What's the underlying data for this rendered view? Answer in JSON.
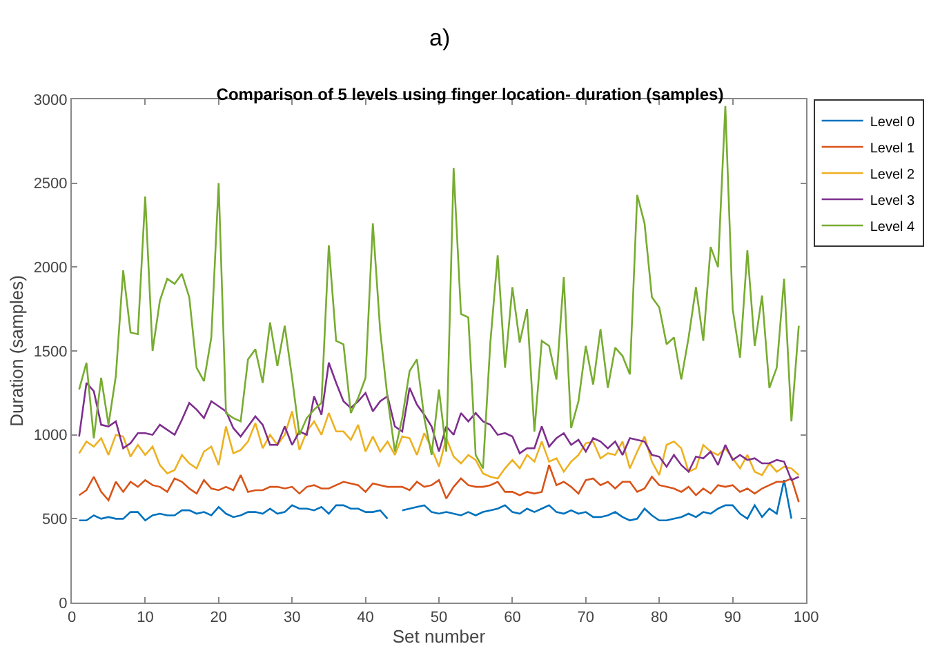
{
  "chart_data": {
    "type": "line",
    "title": "Comparison of 5 levels using finger location- duration (samples)",
    "annotations": [
      "a)"
    ],
    "xlabel": "Set number",
    "ylabel": "Duration (samples)",
    "x": [
      1,
      2,
      3,
      4,
      5,
      6,
      7,
      8,
      9,
      10,
      11,
      12,
      13,
      14,
      15,
      16,
      17,
      18,
      19,
      20,
      21,
      22,
      23,
      24,
      25,
      26,
      27,
      28,
      29,
      30,
      31,
      32,
      33,
      34,
      35,
      36,
      37,
      38,
      39,
      40,
      41,
      42,
      43,
      44,
      45,
      46,
      47,
      48,
      49,
      50,
      51,
      52,
      53,
      54,
      55,
      56,
      57,
      58,
      59,
      60,
      61,
      62,
      63,
      64,
      65,
      66,
      67,
      68,
      69,
      70,
      71,
      72,
      73,
      74,
      75,
      76,
      77,
      78,
      79,
      80,
      81,
      82,
      83,
      84,
      85,
      86,
      87,
      88,
      89,
      90,
      91,
      92,
      93,
      94,
      95,
      96,
      97,
      98,
      99
    ],
    "series": [
      {
        "name": "Level 0",
        "color": "#0072bd",
        "values": [
          490,
          490,
          520,
          500,
          510,
          500,
          500,
          540,
          540,
          490,
          520,
          530,
          520,
          520,
          550,
          550,
          530,
          540,
          520,
          570,
          530,
          510,
          520,
          540,
          540,
          530,
          560,
          530,
          540,
          580,
          560,
          560,
          550,
          570,
          530,
          580,
          580,
          560,
          560,
          540,
          540,
          550,
          500,
          null,
          550,
          560,
          570,
          580,
          540,
          530,
          540,
          530,
          520,
          540,
          520,
          540,
          550,
          560,
          580,
          540,
          530,
          560,
          540,
          560,
          580,
          540,
          530,
          550,
          530,
          540,
          510,
          510,
          520,
          540,
          510,
          490,
          500,
          560,
          520,
          490,
          490,
          500,
          510,
          530,
          510,
          540,
          530,
          560,
          580,
          580,
          530,
          500,
          580,
          510,
          560,
          530,
          730,
          500,
          null
        ]
      },
      {
        "name": "Level 1",
        "color": "#d95319",
        "values": [
          640,
          670,
          750,
          660,
          610,
          720,
          660,
          720,
          690,
          730,
          700,
          690,
          660,
          740,
          720,
          680,
          650,
          730,
          680,
          670,
          690,
          670,
          760,
          660,
          670,
          670,
          690,
          690,
          680,
          690,
          650,
          690,
          700,
          680,
          680,
          700,
          720,
          710,
          700,
          660,
          710,
          700,
          690,
          690,
          690,
          670,
          720,
          690,
          700,
          730,
          620,
          690,
          740,
          700,
          690,
          690,
          700,
          720,
          660,
          660,
          640,
          660,
          650,
          660,
          820,
          700,
          720,
          690,
          650,
          730,
          740,
          700,
          720,
          680,
          720,
          720,
          660,
          680,
          750,
          700,
          690,
          680,
          660,
          690,
          640,
          680,
          650,
          700,
          690,
          700,
          660,
          680,
          650,
          680,
          700,
          720,
          720,
          740,
          600
        ]
      },
      {
        "name": "Level 2",
        "color": "#edb120",
        "values": [
          890,
          960,
          930,
          980,
          880,
          1000,
          990,
          870,
          940,
          880,
          930,
          820,
          770,
          790,
          880,
          830,
          800,
          900,
          930,
          820,
          1050,
          890,
          910,
          960,
          1070,
          920,
          1000,
          940,
          1000,
          1140,
          910,
          1020,
          1080,
          1000,
          1130,
          1020,
          1020,
          970,
          1060,
          900,
          990,
          900,
          960,
          880,
          990,
          980,
          880,
          1010,
          920,
          810,
          980,
          870,
          830,
          880,
          850,
          770,
          750,
          740,
          800,
          850,
          800,
          880,
          840,
          960,
          840,
          860,
          780,
          840,
          880,
          950,
          960,
          860,
          890,
          880,
          960,
          800,
          900,
          990,
          840,
          760,
          940,
          960,
          920,
          780,
          800,
          940,
          900,
          880,
          920,
          860,
          800,
          880,
          780,
          760,
          830,
          780,
          810,
          800,
          760
        ]
      },
      {
        "name": "Level 3",
        "color": "#7e2f8e",
        "values": [
          990,
          1310,
          1260,
          1060,
          1050,
          1080,
          920,
          950,
          1010,
          1010,
          1000,
          1060,
          1030,
          1000,
          1090,
          1190,
          1150,
          1100,
          1200,
          1170,
          1140,
          1040,
          990,
          1050,
          1110,
          1060,
          940,
          940,
          1050,
          940,
          1020,
          1000,
          1230,
          1120,
          1430,
          1310,
          1200,
          1160,
          1200,
          1250,
          1140,
          1200,
          1230,
          1050,
          1020,
          1280,
          1180,
          1120,
          1050,
          900,
          1050,
          1000,
          1130,
          1080,
          1130,
          1080,
          1060,
          1000,
          1010,
          990,
          890,
          920,
          920,
          1050,
          930,
          980,
          1010,
          940,
          970,
          900,
          980,
          960,
          920,
          960,
          880,
          980,
          970,
          960,
          880,
          870,
          810,
          880,
          820,
          780,
          870,
          860,
          900,
          820,
          940,
          850,
          880,
          850,
          860,
          830,
          830,
          850,
          840,
          730,
          750
        ]
      },
      {
        "name": "Level 4",
        "color": "#77ac30",
        "values": [
          1270,
          1430,
          980,
          1340,
          1060,
          1350,
          1980,
          1610,
          1600,
          2420,
          1500,
          1800,
          1930,
          1900,
          1960,
          1820,
          1400,
          1320,
          1580,
          2500,
          1130,
          1100,
          1080,
          1450,
          1510,
          1310,
          1670,
          1410,
          1650,
          1340,
          1000,
          1100,
          1150,
          1190,
          2130,
          1560,
          1540,
          1130,
          1220,
          1340,
          2260,
          1620,
          1220,
          900,
          1100,
          1380,
          1450,
          1100,
          880,
          1270,
          900,
          2590,
          1720,
          1700,
          880,
          800,
          1550,
          2070,
          1400,
          1880,
          1550,
          1750,
          1020,
          1560,
          1530,
          1330,
          1940,
          1040,
          1200,
          1530,
          1300,
          1630,
          1280,
          1520,
          1470,
          1360,
          2430,
          2260,
          1820,
          1760,
          1540,
          1580,
          1330,
          1580,
          1880,
          1560,
          2120,
          2000,
          2960,
          1750,
          1460,
          2100,
          1530,
          1830,
          1280,
          1400,
          1930,
          1080,
          1650
        ]
      }
    ],
    "xlim": [
      0,
      100
    ],
    "xticks": [
      0,
      10,
      20,
      30,
      40,
      50,
      60,
      70,
      80,
      90,
      100
    ],
    "ylim": [
      0,
      3000
    ],
    "yticks": [
      0,
      500,
      1000,
      1500,
      2000,
      2500,
      3000
    ],
    "grid": false,
    "legend": "right",
    "marker": "none",
    "line_style": "solid"
  }
}
